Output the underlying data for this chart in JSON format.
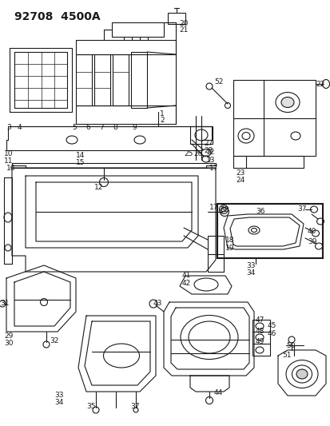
{
  "title": "92708  4500A",
  "bg_color": "#ffffff",
  "line_color": "#1a1a1a",
  "title_fontsize": 10,
  "label_fontsize": 6.5,
  "fig_width": 4.14,
  "fig_height": 5.33,
  "dpi": 100
}
